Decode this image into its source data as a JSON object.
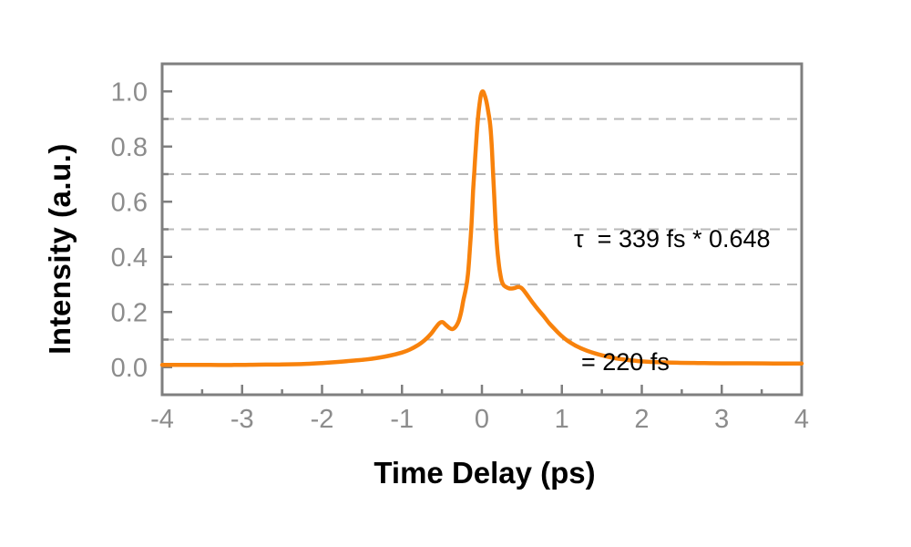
{
  "chart_data": {
    "type": "line",
    "title": "",
    "xlabel": "Time Delay (ps)",
    "ylabel": "Intensity (a.u.)",
    "xlim": [
      -4,
      4
    ],
    "ylim": [
      -0.1,
      1.1
    ],
    "x_major_ticks": [
      -4,
      -3,
      -2,
      -1,
      0,
      1,
      2,
      3,
      4
    ],
    "x_minor_ticks": [
      -3.5,
      -2.5,
      -1.5,
      -0.5,
      0.5,
      1.5,
      2.5,
      3.5
    ],
    "x_tick_labels": [
      "-4",
      "-3",
      "-2",
      "-1",
      "0",
      "1",
      "2",
      "3",
      "4"
    ],
    "y_major_ticks": [
      0.0,
      0.2,
      0.4,
      0.6,
      0.8,
      1.0
    ],
    "y_minor_ticks": [
      0.1,
      0.3,
      0.5,
      0.7,
      0.9
    ],
    "y_tick_labels": [
      "0.0",
      "0.2",
      "0.4",
      "0.6",
      "0.8",
      "1.0"
    ],
    "grid": {
      "style": "dashed",
      "horizontal_lines_at": [
        0.1,
        0.3,
        0.5,
        0.7,
        0.9
      ]
    },
    "legend": {
      "visible": false
    },
    "series": [
      {
        "name": "autocorrelation-trace",
        "color": "#F8820C",
        "points": [
          [
            -4.0,
            0.008
          ],
          [
            -3.7,
            0.008
          ],
          [
            -3.4,
            0.008
          ],
          [
            -3.1,
            0.008
          ],
          [
            -2.8,
            0.009
          ],
          [
            -2.5,
            0.01
          ],
          [
            -2.2,
            0.012
          ],
          [
            -2.0,
            0.015
          ],
          [
            -1.8,
            0.019
          ],
          [
            -1.6,
            0.024
          ],
          [
            -1.45,
            0.028
          ],
          [
            -1.3,
            0.034
          ],
          [
            -1.15,
            0.042
          ],
          [
            -1.0,
            0.053
          ],
          [
            -0.9,
            0.064
          ],
          [
            -0.8,
            0.08
          ],
          [
            -0.72,
            0.097
          ],
          [
            -0.64,
            0.12
          ],
          [
            -0.58,
            0.143
          ],
          [
            -0.53,
            0.16
          ],
          [
            -0.49,
            0.163
          ],
          [
            -0.45,
            0.153
          ],
          [
            -0.41,
            0.143
          ],
          [
            -0.37,
            0.138
          ],
          [
            -0.33,
            0.146
          ],
          [
            -0.29,
            0.168
          ],
          [
            -0.26,
            0.2
          ],
          [
            -0.23,
            0.245
          ],
          [
            -0.2,
            0.285
          ],
          [
            -0.175,
            0.335
          ],
          [
            -0.15,
            0.43
          ],
          [
            -0.13,
            0.52
          ],
          [
            -0.11,
            0.64
          ],
          [
            -0.095,
            0.71
          ],
          [
            -0.08,
            0.78
          ],
          [
            -0.065,
            0.845
          ],
          [
            -0.05,
            0.9
          ],
          [
            -0.03,
            0.955
          ],
          [
            -0.01,
            0.99
          ],
          [
            0.01,
            1.0
          ],
          [
            0.03,
            0.99
          ],
          [
            0.055,
            0.965
          ],
          [
            0.08,
            0.925
          ],
          [
            0.105,
            0.875
          ],
          [
            0.125,
            0.79
          ],
          [
            0.14,
            0.7
          ],
          [
            0.155,
            0.615
          ],
          [
            0.17,
            0.525
          ],
          [
            0.185,
            0.455
          ],
          [
            0.2,
            0.405
          ],
          [
            0.22,
            0.355
          ],
          [
            0.245,
            0.315
          ],
          [
            0.27,
            0.298
          ],
          [
            0.3,
            0.291
          ],
          [
            0.335,
            0.286
          ],
          [
            0.37,
            0.285
          ],
          [
            0.41,
            0.287
          ],
          [
            0.45,
            0.291
          ],
          [
            0.49,
            0.288
          ],
          [
            0.53,
            0.276
          ],
          [
            0.58,
            0.256
          ],
          [
            0.64,
            0.232
          ],
          [
            0.7,
            0.21
          ],
          [
            0.77,
            0.186
          ],
          [
            0.84,
            0.16
          ],
          [
            0.91,
            0.138
          ],
          [
            0.99,
            0.115
          ],
          [
            1.07,
            0.096
          ],
          [
            1.16,
            0.08
          ],
          [
            1.26,
            0.066
          ],
          [
            1.37,
            0.054
          ],
          [
            1.5,
            0.043
          ],
          [
            1.64,
            0.034
          ],
          [
            1.8,
            0.027
          ],
          [
            2.0,
            0.021
          ],
          [
            2.2,
            0.018
          ],
          [
            2.45,
            0.016
          ],
          [
            2.7,
            0.015
          ],
          [
            3.0,
            0.014
          ],
          [
            3.3,
            0.014
          ],
          [
            3.65,
            0.0135
          ],
          [
            4.0,
            0.0135
          ]
        ]
      }
    ],
    "annotation": {
      "line1": "τ  = 339 fs * 0.648",
      "line2": "= 220 fs"
    }
  },
  "colors": {
    "curve": "#F8820C",
    "axis": "#7F7F7F",
    "grid": "#B9B9B9",
    "tick_label": "#8C8C8C",
    "text": "#000000",
    "background": "#FFFFFF"
  }
}
